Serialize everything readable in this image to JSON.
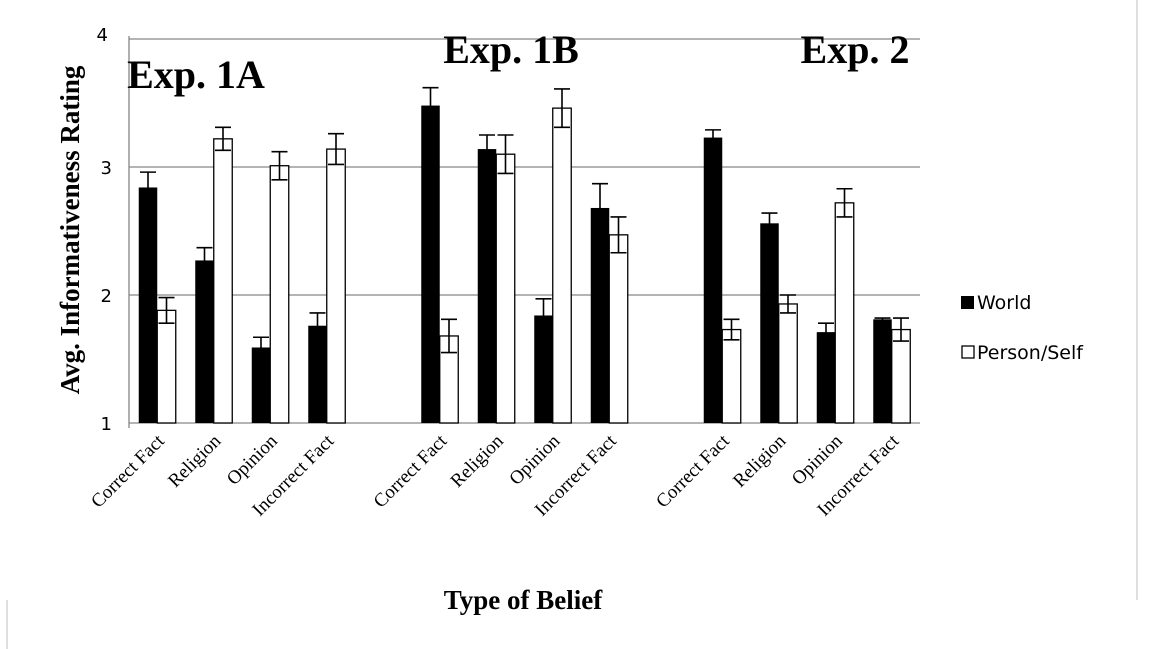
{
  "chart_data": {
    "type": "bar",
    "ylabel": "Avg. Informativeness Rating",
    "xlabel": "Type of Belief",
    "ylim": [
      1,
      4
    ],
    "yticks": [
      "1",
      "2",
      "3",
      "4"
    ],
    "grid": true,
    "legend_position": "right",
    "panels": [
      {
        "label": "Exp. 1A",
        "categories": [
          "Correct Fact",
          "Religion",
          "Opinion",
          "Incorrect Fact"
        ],
        "series": [
          {
            "name": "World",
            "values": [
              2.84,
              2.27,
              1.59,
              1.76
            ],
            "errors": [
              0.12,
              0.1,
              0.08,
              0.1
            ]
          },
          {
            "name": "Person/Self",
            "values": [
              1.88,
              3.22,
              3.01,
              3.14
            ],
            "errors": [
              0.1,
              0.09,
              0.11,
              0.12
            ]
          }
        ]
      },
      {
        "label": "Exp. 1B",
        "categories": [
          "Correct Fact",
          "Religion",
          "Opinion",
          "Incorrect Fact"
        ],
        "series": [
          {
            "name": "World",
            "values": [
              3.48,
              3.14,
              1.84,
              2.68
            ],
            "errors": [
              0.14,
              0.11,
              0.13,
              0.19
            ]
          },
          {
            "name": "Person/Self",
            "values": [
              1.68,
              3.1,
              3.46,
              2.47
            ],
            "errors": [
              0.13,
              0.15,
              0.15,
              0.14
            ]
          }
        ]
      },
      {
        "label": "Exp. 2",
        "categories": [
          "Correct Fact",
          "Religion",
          "Opinion",
          "Incorrect Fact"
        ],
        "series": [
          {
            "name": "World",
            "values": [
              3.23,
              2.56,
              1.71,
              1.81
            ],
            "errors": [
              0.06,
              0.08,
              0.07,
              0.01
            ]
          },
          {
            "name": "Person/Self",
            "values": [
              1.73,
              1.93,
              2.72,
              1.73
            ],
            "errors": [
              0.08,
              0.07,
              0.11,
              0.09
            ]
          }
        ]
      }
    ],
    "legend": [
      {
        "name": "World",
        "color": "#000000"
      },
      {
        "name": "Person/Self",
        "color": "#ffffff"
      }
    ]
  }
}
